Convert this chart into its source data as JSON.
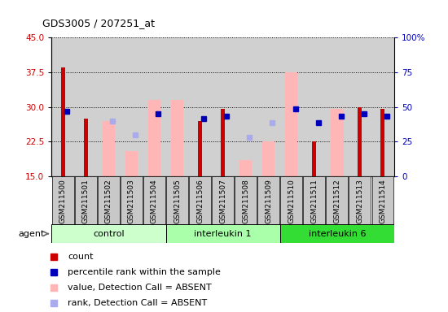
{
  "title": "GDS3005 / 207251_at",
  "samples": [
    "GSM211500",
    "GSM211501",
    "GSM211502",
    "GSM211503",
    "GSM211504",
    "GSM211505",
    "GSM211506",
    "GSM211507",
    "GSM211508",
    "GSM211509",
    "GSM211510",
    "GSM211511",
    "GSM211512",
    "GSM211513",
    "GSM211514"
  ],
  "group_configs": [
    {
      "name": "control",
      "indices": [
        0,
        1,
        2,
        3,
        4
      ],
      "color": "#ccffcc"
    },
    {
      "name": "interleukin 1",
      "indices": [
        5,
        6,
        7,
        8,
        9
      ],
      "color": "#aaffaa"
    },
    {
      "name": "interleukin 6",
      "indices": [
        10,
        11,
        12,
        13,
        14
      ],
      "color": "#33dd33"
    }
  ],
  "red_bars": [
    38.5,
    27.5,
    null,
    null,
    null,
    null,
    27.0,
    29.5,
    null,
    null,
    null,
    22.5,
    null,
    30.0,
    29.5
  ],
  "pink_bars": [
    null,
    null,
    27.0,
    20.5,
    31.5,
    31.5,
    null,
    null,
    18.5,
    22.5,
    37.5,
    null,
    29.5,
    null,
    null
  ],
  "blue_squares": [
    29.0,
    null,
    null,
    null,
    28.5,
    null,
    27.5,
    28.0,
    null,
    null,
    29.5,
    26.5,
    28.0,
    28.5,
    28.0
  ],
  "lav_squares": [
    null,
    null,
    27.0,
    24.0,
    null,
    null,
    null,
    null,
    23.5,
    26.5,
    null,
    null,
    null,
    null,
    null
  ],
  "ymin": 15,
  "ymax": 45,
  "yticks_left": [
    15,
    22.5,
    30,
    37.5,
    45
  ],
  "yticks_right_pos": [
    15,
    22.5,
    30,
    37.5,
    45
  ],
  "yticks_right_labels": [
    "0",
    "25",
    "50",
    "75",
    "100%"
  ],
  "red_color": "#cc0000",
  "pink_color": "#ffb6b6",
  "blue_color": "#0000bb",
  "lav_color": "#aaaaee",
  "plot_bg": "#d0d0d0",
  "tick_bg": "#c0c0c0",
  "agent_label": "agent",
  "legend_items": [
    {
      "color": "#cc0000",
      "label": "count"
    },
    {
      "color": "#0000bb",
      "label": "percentile rank within the sample"
    },
    {
      "color": "#ffb6b6",
      "label": "value, Detection Call = ABSENT"
    },
    {
      "color": "#aaaaee",
      "label": "rank, Detection Call = ABSENT"
    }
  ]
}
